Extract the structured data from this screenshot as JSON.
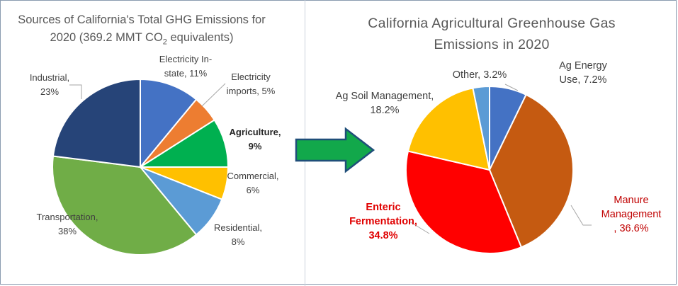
{
  "left_title": {
    "line1": "Sources of California's Total GHG Emissions for",
    "line2_pre": "2020 (369.2 MMT CO",
    "line2_sub": "2",
    "line2_post": " equivalents)"
  },
  "right_title": {
    "line1": "California Agricultural Greenhouse Gas",
    "line2": "Emissions in 2020"
  },
  "colors": {
    "arrow_fill": "#12a84b",
    "arrow_stroke": "#1f4e79"
  },
  "chart_data": [
    {
      "type": "pie",
      "title": "Sources of California's Total GHG Emissions for 2020 (369.2 MMT CO2 equivalents)",
      "slices": [
        {
          "name": "Electricity In-state",
          "value": 11,
          "color": "#4472c4",
          "label_lines": [
            "Electricity In-",
            "state, 11%"
          ]
        },
        {
          "name": "Electricity imports",
          "value": 5,
          "color": "#ed7d31",
          "label_lines": [
            "Electricity",
            "imports, 5%"
          ]
        },
        {
          "name": "Agriculture",
          "value": 9,
          "color": "#00b050",
          "label_lines": [
            "Agriculture,",
            "9%"
          ],
          "bold": true
        },
        {
          "name": "Commercial",
          "value": 6,
          "color": "#ffc000",
          "label_lines": [
            "Commercial,",
            "6%"
          ]
        },
        {
          "name": "Residential",
          "value": 8,
          "color": "#5b9bd5",
          "label_lines": [
            "Residential,",
            "8%"
          ]
        },
        {
          "name": "Transportation",
          "value": 38,
          "color": "#70ad47",
          "label_lines": [
            "Transportation,",
            "38%"
          ]
        },
        {
          "name": "Industrial",
          "value": 23,
          "color": "#264478",
          "label_lines": [
            "Industrial,",
            "23%"
          ]
        }
      ]
    },
    {
      "type": "pie",
      "title": "California Agricultural Greenhouse Gas Emissions in 2020",
      "slices": [
        {
          "name": "Ag Energy Use",
          "value": 7.2,
          "color": "#4472c4",
          "label_lines": [
            "Ag Energy",
            "Use, 7.2%"
          ]
        },
        {
          "name": "Manure Management",
          "value": 36.6,
          "color": "#c55a11",
          "label_lines": [
            "Manure",
            "Management",
            ", 36.6%"
          ],
          "style": "red-normal"
        },
        {
          "name": "Enteric Fermentation",
          "value": 34.8,
          "color": "#ff0000",
          "label_lines": [
            "Enteric",
            "Fermentation,",
            "34.8%"
          ],
          "style": "red-bold"
        },
        {
          "name": "Ag Soil Management",
          "value": 18.2,
          "color": "#ffc000",
          "label_lines": [
            "Ag Soil Management,",
            "18.2%"
          ]
        },
        {
          "name": "Other",
          "value": 3.2,
          "color": "#5b9bd5",
          "label_lines": [
            "Other, 3.2%"
          ]
        }
      ]
    }
  ]
}
